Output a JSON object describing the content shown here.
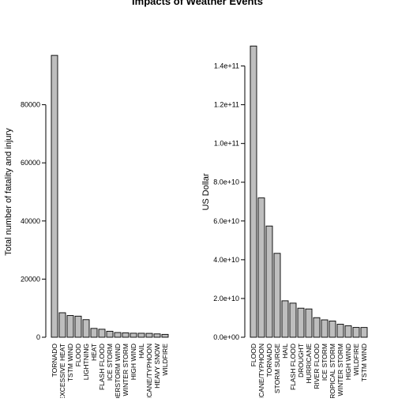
{
  "figure": {
    "title": "Impacts of Weather Events"
  },
  "chart_data": [
    {
      "type": "bar",
      "ylabel": "Total number of fatality and injury",
      "categories": [
        "TORNADO",
        "EXCESSIVE HEAT",
        "TSTM WIND",
        "FLOOD",
        "LIGHTNING",
        "HEAT",
        "FLASH FLOOD",
        "ICE STORM",
        "THUNDERSTORM WIND",
        "WINTER STORM",
        "HIGH WIND",
        "HAIL",
        "HURRICANE/TYPHOON",
        "HEAVY SNOW",
        "WILDFIRE"
      ],
      "values": [
        96979,
        8428,
        7461,
        7259,
        6046,
        3037,
        2755,
        2064,
        1621,
        1527,
        1385,
        1376,
        1339,
        1148,
        986
      ],
      "ylim": [
        0,
        100000
      ],
      "yticks": [
        0,
        20000,
        40000,
        60000,
        80000
      ],
      "ytick_labels": [
        "0",
        "20000",
        "40000",
        "60000",
        "80000"
      ],
      "bar_color": "#bebebe"
    },
    {
      "type": "bar",
      "ylabel": "US Dollar",
      "categories": [
        "FLOOD",
        "HURRICANE/TYPHOON",
        "TORNADO",
        "STORM SURGE",
        "HAIL",
        "FLASH FLOOD",
        "DROUGHT",
        "HURRICANE",
        "RIVER FLOOD",
        "ICE STORM",
        "TROPICAL STORM",
        "WINTER STORM",
        "HIGH WIND",
        "WILDFIRE",
        "TSTM WIND"
      ],
      "values": [
        150300000000,
        71900000000,
        57400000000,
        43300000000,
        18800000000,
        17600000000,
        15000000000,
        14600000000,
        10100000000,
        8970000000,
        8380000000,
        6720000000,
        5910000000,
        5060000000,
        5040000000
      ],
      "ylim": [
        0,
        150000000000
      ],
      "yticks": [
        0,
        20000000000,
        40000000000,
        60000000000,
        80000000000,
        100000000000,
        120000000000,
        140000000000
      ],
      "ytick_labels": [
        "0.0e+00",
        "2.0e+10",
        "4.0e+10",
        "6.0e+10",
        "8.0e+10",
        "1.0e+11",
        "1.2e+11",
        "1.4e+11"
      ],
      "bar_color": "#bebebe"
    }
  ]
}
